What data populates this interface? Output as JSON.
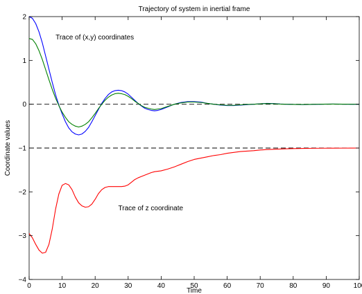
{
  "chart_data": {
    "type": "line",
    "title": "Trajectory of system in inertial frame",
    "xlabel": "Time",
    "ylabel": "Coordinate values",
    "xlim": [
      0,
      100
    ],
    "ylim": [
      -4,
      2
    ],
    "xticks": [
      0,
      10,
      20,
      30,
      40,
      50,
      60,
      70,
      80,
      90,
      100
    ],
    "yticks": [
      -4,
      -3,
      -2,
      -1,
      0,
      1,
      2
    ],
    "grid": false,
    "annotations": [
      {
        "text": "Trace of (x,y) coordinates",
        "x": 8,
        "y": 1.48
      },
      {
        "text": "Trace of z coordinate",
        "x": 27,
        "y": -2.42
      }
    ],
    "reference_lines": [
      {
        "y": 0,
        "style": "dashed",
        "color": "#000000"
      },
      {
        "y": -1,
        "style": "dashed",
        "color": "#000000"
      }
    ],
    "series": [
      {
        "color": "#0000ff",
        "x": [
          0,
          1,
          2,
          3,
          4,
          5,
          6,
          7,
          8,
          9,
          10,
          11,
          12,
          13,
          14,
          15,
          16,
          17,
          18,
          19,
          20,
          21,
          22,
          23,
          24,
          25,
          26,
          27,
          28,
          29,
          30,
          31,
          32,
          33,
          34,
          35,
          36,
          37,
          38,
          39,
          40,
          42,
          44,
          46,
          48,
          50,
          52,
          54,
          56,
          58,
          60,
          62,
          64,
          66,
          68,
          70,
          72,
          74,
          76,
          78,
          80,
          83,
          86,
          89,
          92,
          95,
          98,
          100
        ],
        "y": [
          2.0,
          1.96,
          1.84,
          1.65,
          1.4,
          1.1,
          0.8,
          0.5,
          0.22,
          -0.02,
          -0.22,
          -0.4,
          -0.54,
          -0.63,
          -0.68,
          -0.7,
          -0.68,
          -0.62,
          -0.53,
          -0.4,
          -0.26,
          -0.12,
          0.02,
          0.13,
          0.22,
          0.28,
          0.31,
          0.32,
          0.31,
          0.28,
          0.23,
          0.16,
          0.09,
          0.02,
          -0.04,
          -0.09,
          -0.12,
          -0.14,
          -0.15,
          -0.14,
          -0.12,
          -0.06,
          0.0,
          0.04,
          0.06,
          0.06,
          0.05,
          0.02,
          0.0,
          -0.02,
          -0.03,
          -0.03,
          -0.02,
          -0.01,
          0.0,
          0.01,
          0.02,
          0.015,
          0.005,
          0.0,
          -0.005,
          -0.008,
          -0.004,
          0.002,
          0.004,
          0.002,
          0.0,
          0.0
        ]
      },
      {
        "color": "#008000",
        "x": [
          0,
          1,
          2,
          3,
          4,
          5,
          6,
          7,
          8,
          9,
          10,
          11,
          12,
          13,
          14,
          15,
          16,
          17,
          18,
          19,
          20,
          21,
          22,
          23,
          24,
          25,
          26,
          27,
          28,
          29,
          30,
          31,
          32,
          33,
          34,
          35,
          36,
          37,
          38,
          39,
          40,
          42,
          44,
          46,
          48,
          50,
          52,
          54,
          56,
          58,
          60,
          62,
          64,
          66,
          68,
          70,
          72,
          74,
          76,
          78,
          80,
          83,
          86,
          89,
          92,
          95,
          98,
          100
        ],
        "y": [
          1.5,
          1.48,
          1.38,
          1.22,
          1.02,
          0.79,
          0.56,
          0.34,
          0.14,
          -0.03,
          -0.18,
          -0.3,
          -0.4,
          -0.46,
          -0.5,
          -0.52,
          -0.5,
          -0.46,
          -0.4,
          -0.31,
          -0.21,
          -0.1,
          0.0,
          0.09,
          0.16,
          0.21,
          0.24,
          0.25,
          0.24,
          0.22,
          0.18,
          0.13,
          0.07,
          0.02,
          -0.03,
          -0.07,
          -0.09,
          -0.11,
          -0.12,
          -0.11,
          -0.1,
          -0.05,
          0.0,
          0.03,
          0.05,
          0.05,
          0.04,
          0.02,
          0.0,
          -0.015,
          -0.025,
          -0.025,
          -0.015,
          -0.005,
          0.0,
          0.01,
          0.015,
          0.012,
          0.004,
          0.0,
          -0.004,
          -0.006,
          -0.003,
          0.002,
          0.003,
          0.002,
          0.0,
          0.0
        ]
      },
      {
        "color": "#ff0000",
        "x": [
          0,
          1,
          2,
          3,
          4,
          5,
          6,
          7,
          8,
          9,
          10,
          11,
          12,
          13,
          14,
          15,
          16,
          17,
          18,
          19,
          20,
          21,
          22,
          23,
          24,
          25,
          26,
          27,
          28,
          29,
          30,
          31,
          32,
          33,
          34,
          35,
          36,
          37,
          38,
          39,
          40,
          42,
          44,
          46,
          48,
          50,
          52,
          54,
          56,
          58,
          60,
          62,
          64,
          66,
          68,
          70,
          72,
          74,
          76,
          78,
          80,
          83,
          86,
          89,
          92,
          95,
          98,
          100
        ],
        "y": [
          -2.95,
          -3.05,
          -3.2,
          -3.33,
          -3.4,
          -3.38,
          -3.2,
          -2.85,
          -2.4,
          -2.05,
          -1.85,
          -1.81,
          -1.84,
          -1.95,
          -2.12,
          -2.25,
          -2.32,
          -2.35,
          -2.34,
          -2.28,
          -2.17,
          -2.04,
          -1.95,
          -1.9,
          -1.88,
          -1.88,
          -1.88,
          -1.88,
          -1.88,
          -1.87,
          -1.84,
          -1.78,
          -1.72,
          -1.68,
          -1.65,
          -1.62,
          -1.59,
          -1.56,
          -1.54,
          -1.53,
          -1.52,
          -1.48,
          -1.43,
          -1.37,
          -1.31,
          -1.26,
          -1.23,
          -1.2,
          -1.17,
          -1.15,
          -1.12,
          -1.1,
          -1.08,
          -1.07,
          -1.06,
          -1.045,
          -1.035,
          -1.028,
          -1.022,
          -1.017,
          -1.013,
          -1.009,
          -1.006,
          -1.004,
          -1.003,
          -1.002,
          -1.001,
          -1.0
        ]
      }
    ]
  }
}
